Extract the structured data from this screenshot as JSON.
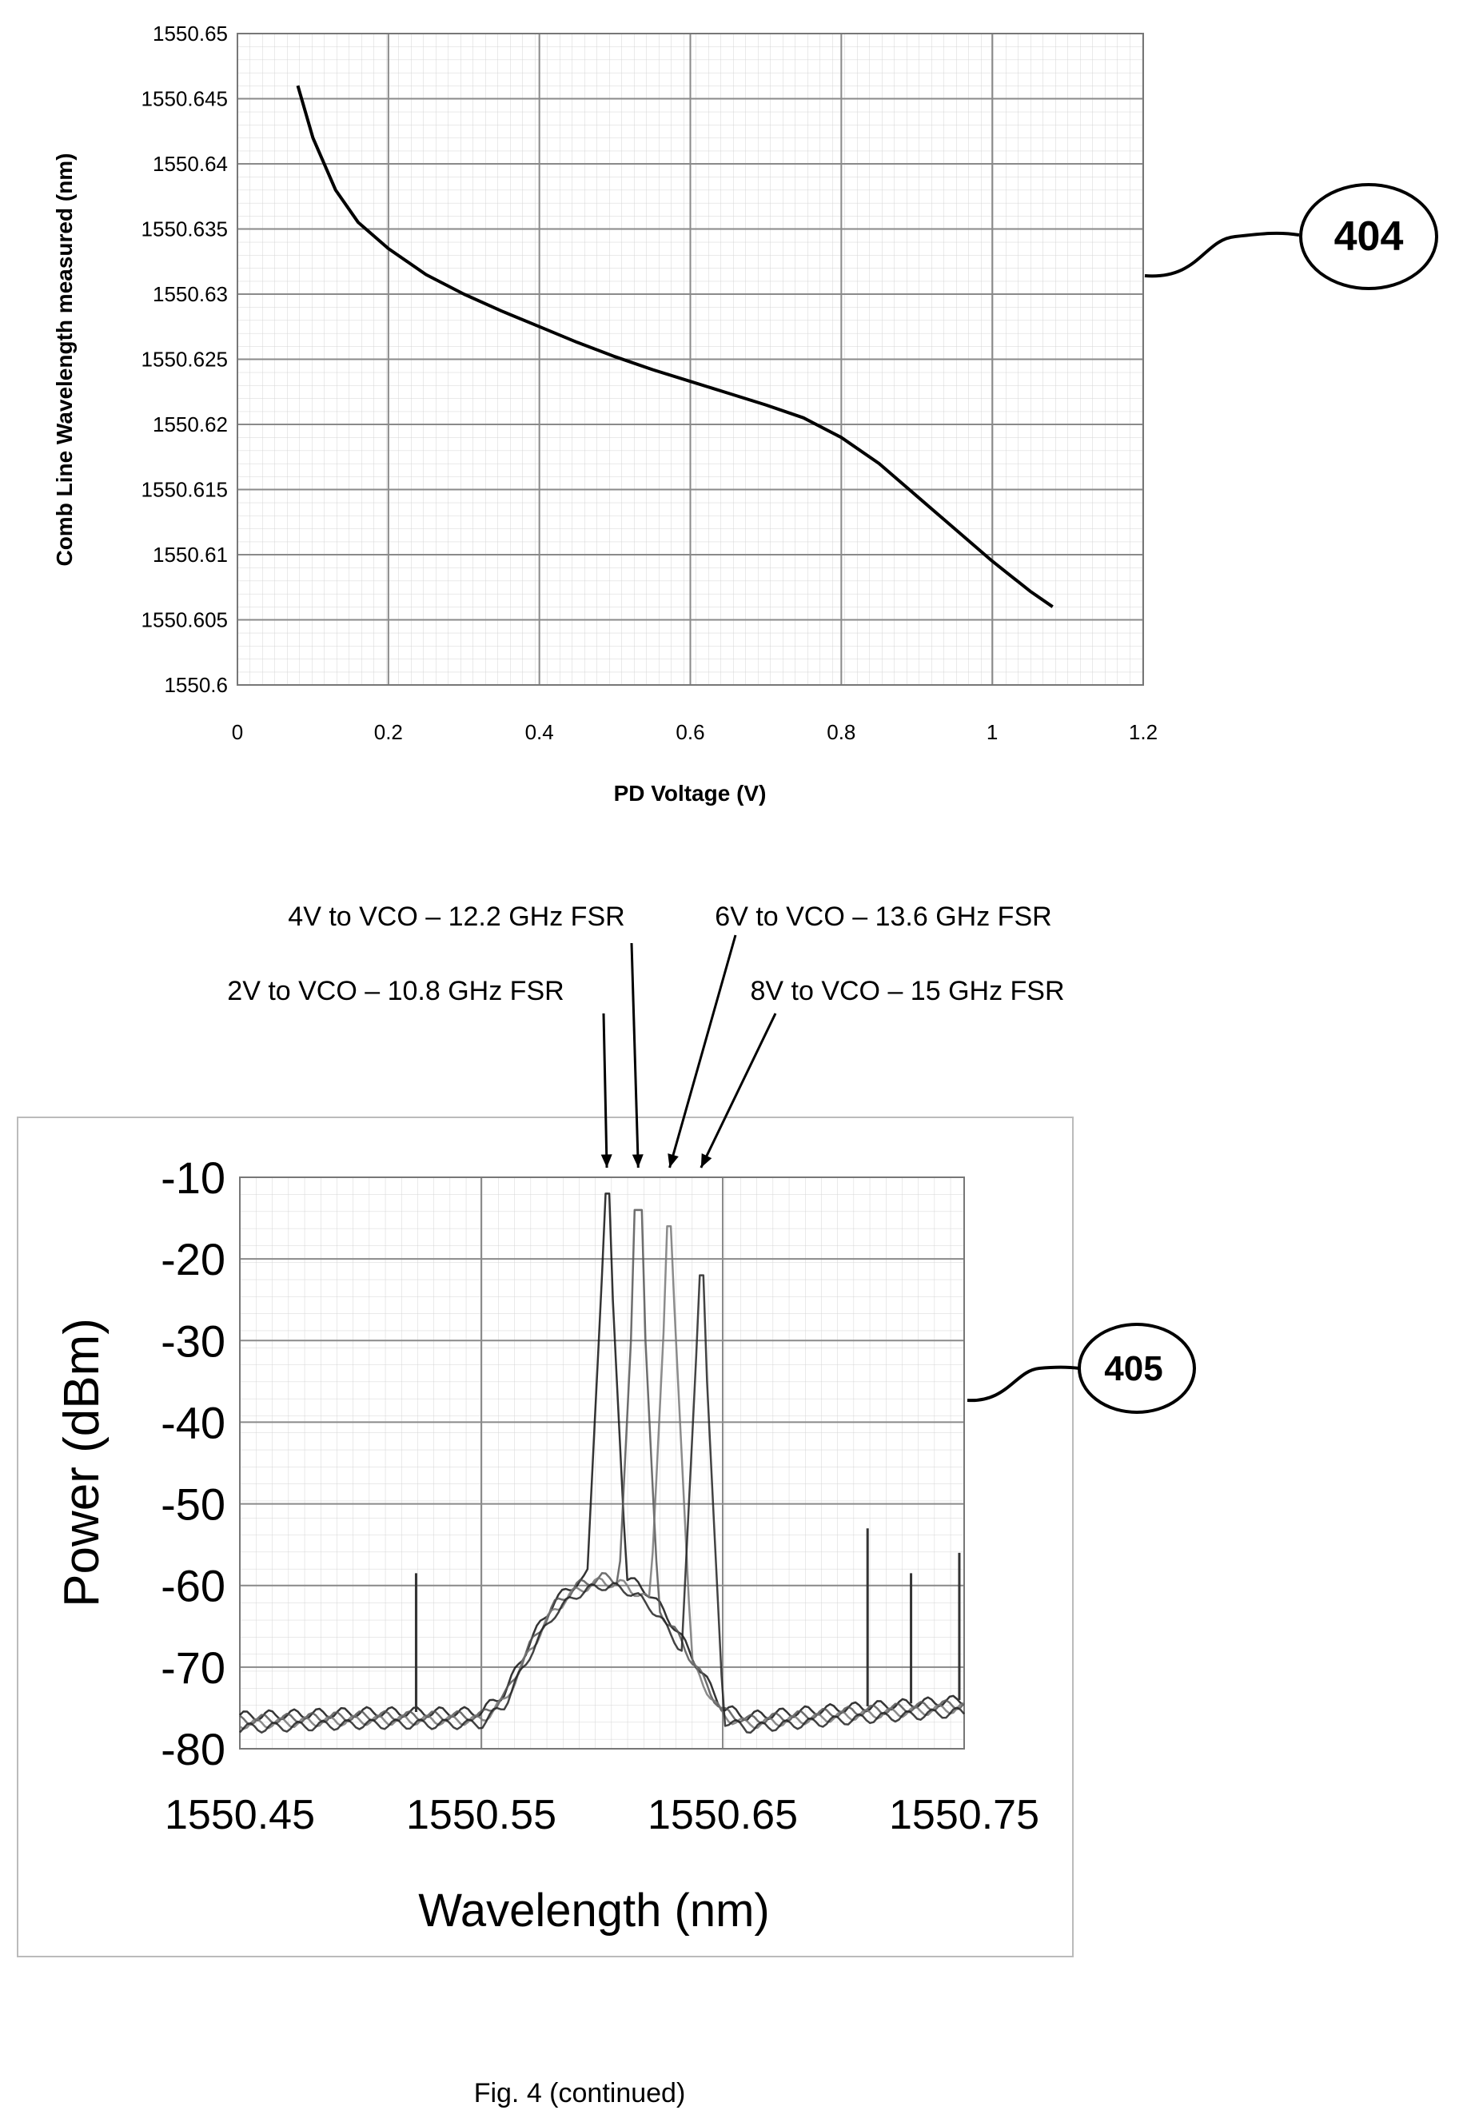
{
  "figure": {
    "caption": "Fig. 4 (continued)"
  },
  "chart_data": [
    {
      "type": "line",
      "ref_label": "404",
      "title": "",
      "xlabel": "PD Voltage (V)",
      "ylabel": "Comb Line Wavelength measured (nm)",
      "xlim": [
        0,
        1.2
      ],
      "ylim": [
        1550.6,
        1550.65
      ],
      "x_ticks": [
        "0",
        "0.2",
        "0.4",
        "0.6",
        "0.8",
        "1",
        "1.2"
      ],
      "y_ticks": [
        "1550.6",
        "1550.605",
        "1550.61",
        "1550.615",
        "1550.62",
        "1550.625",
        "1550.63",
        "1550.635",
        "1550.64",
        "1550.645",
        "1550.65"
      ],
      "grid": true,
      "series": [
        {
          "color": "#000000",
          "x": [
            0.08,
            0.1,
            0.13,
            0.16,
            0.2,
            0.25,
            0.3,
            0.35,
            0.4,
            0.45,
            0.5,
            0.55,
            0.6,
            0.65,
            0.7,
            0.75,
            0.8,
            0.85,
            0.9,
            0.95,
            1.0,
            1.05,
            1.08
          ],
          "y": [
            1550.646,
            1550.642,
            1550.638,
            1550.6355,
            1550.6335,
            1550.6315,
            1550.63,
            1550.6287,
            1550.6275,
            1550.6263,
            1550.6252,
            1550.6242,
            1550.6233,
            1550.6224,
            1550.6215,
            1550.6205,
            1550.619,
            1550.617,
            1550.6145,
            1550.612,
            1550.6095,
            1550.6072,
            1550.606
          ]
        }
      ]
    },
    {
      "type": "line",
      "ref_label": "405",
      "title": "",
      "xlabel": "Wavelength (nm)",
      "ylabel": "Power (dBm)",
      "xlim": [
        1550.45,
        1550.75
      ],
      "ylim": [
        -80,
        -10
      ],
      "x_ticks": [
        "1550.45",
        "1550.55",
        "1550.65",
        "1550.75"
      ],
      "y_ticks": [
        "-10",
        "-20",
        "-30",
        "-40",
        "-50",
        "-60",
        "-70",
        "-80"
      ],
      "grid": true,
      "annotations": [
        {
          "text": "4V to VCO – 12.2 GHz FSR",
          "target_x": 1550.615
        },
        {
          "text": "6V to VCO – 13.6 GHz FSR",
          "target_x": 1550.628
        },
        {
          "text": "2V to VCO – 10.8 GHz FSR",
          "target_x": 1550.602
        },
        {
          "text": "8V to VCO – 15 GHz FSR",
          "target_x": 1550.641
        }
      ],
      "baseline": {
        "x": [
          1550.45,
          1550.5,
          1550.55,
          1550.56,
          1550.57,
          1550.58,
          1550.59,
          1550.6,
          1550.61,
          1550.62,
          1550.63,
          1550.64,
          1550.65,
          1550.66,
          1550.7,
          1550.75
        ],
        "y": [
          -76,
          -75.5,
          -75.5,
          -73,
          -67,
          -62,
          -59.5,
          -58.5,
          -59,
          -61,
          -65,
          -70,
          -75,
          -76,
          -75,
          -74
        ]
      },
      "series": [
        {
          "label": "2V to VCO – 10.8 GHz FSR",
          "color": "#111111",
          "peak_x": 1550.602,
          "peak_y": -12
        },
        {
          "label": "4V to VCO – 12.2 GHz FSR",
          "color": "#555555",
          "peak_x": 1550.615,
          "peak_y": -14
        },
        {
          "label": "6V to VCO – 13.6 GHz FSR",
          "color": "#777777",
          "peak_x": 1550.628,
          "peak_y": -16
        },
        {
          "label": "8V to VCO – 15 GHz FSR",
          "color": "#222222",
          "peak_x": 1550.641,
          "peak_y": -22
        }
      ],
      "side_peaks": [
        {
          "x": 1550.523,
          "y": -58.5
        },
        {
          "x": 1550.71,
          "y": -53
        },
        {
          "x": 1550.728,
          "y": -58.5
        },
        {
          "x": 1550.748,
          "y": -56
        }
      ]
    }
  ]
}
